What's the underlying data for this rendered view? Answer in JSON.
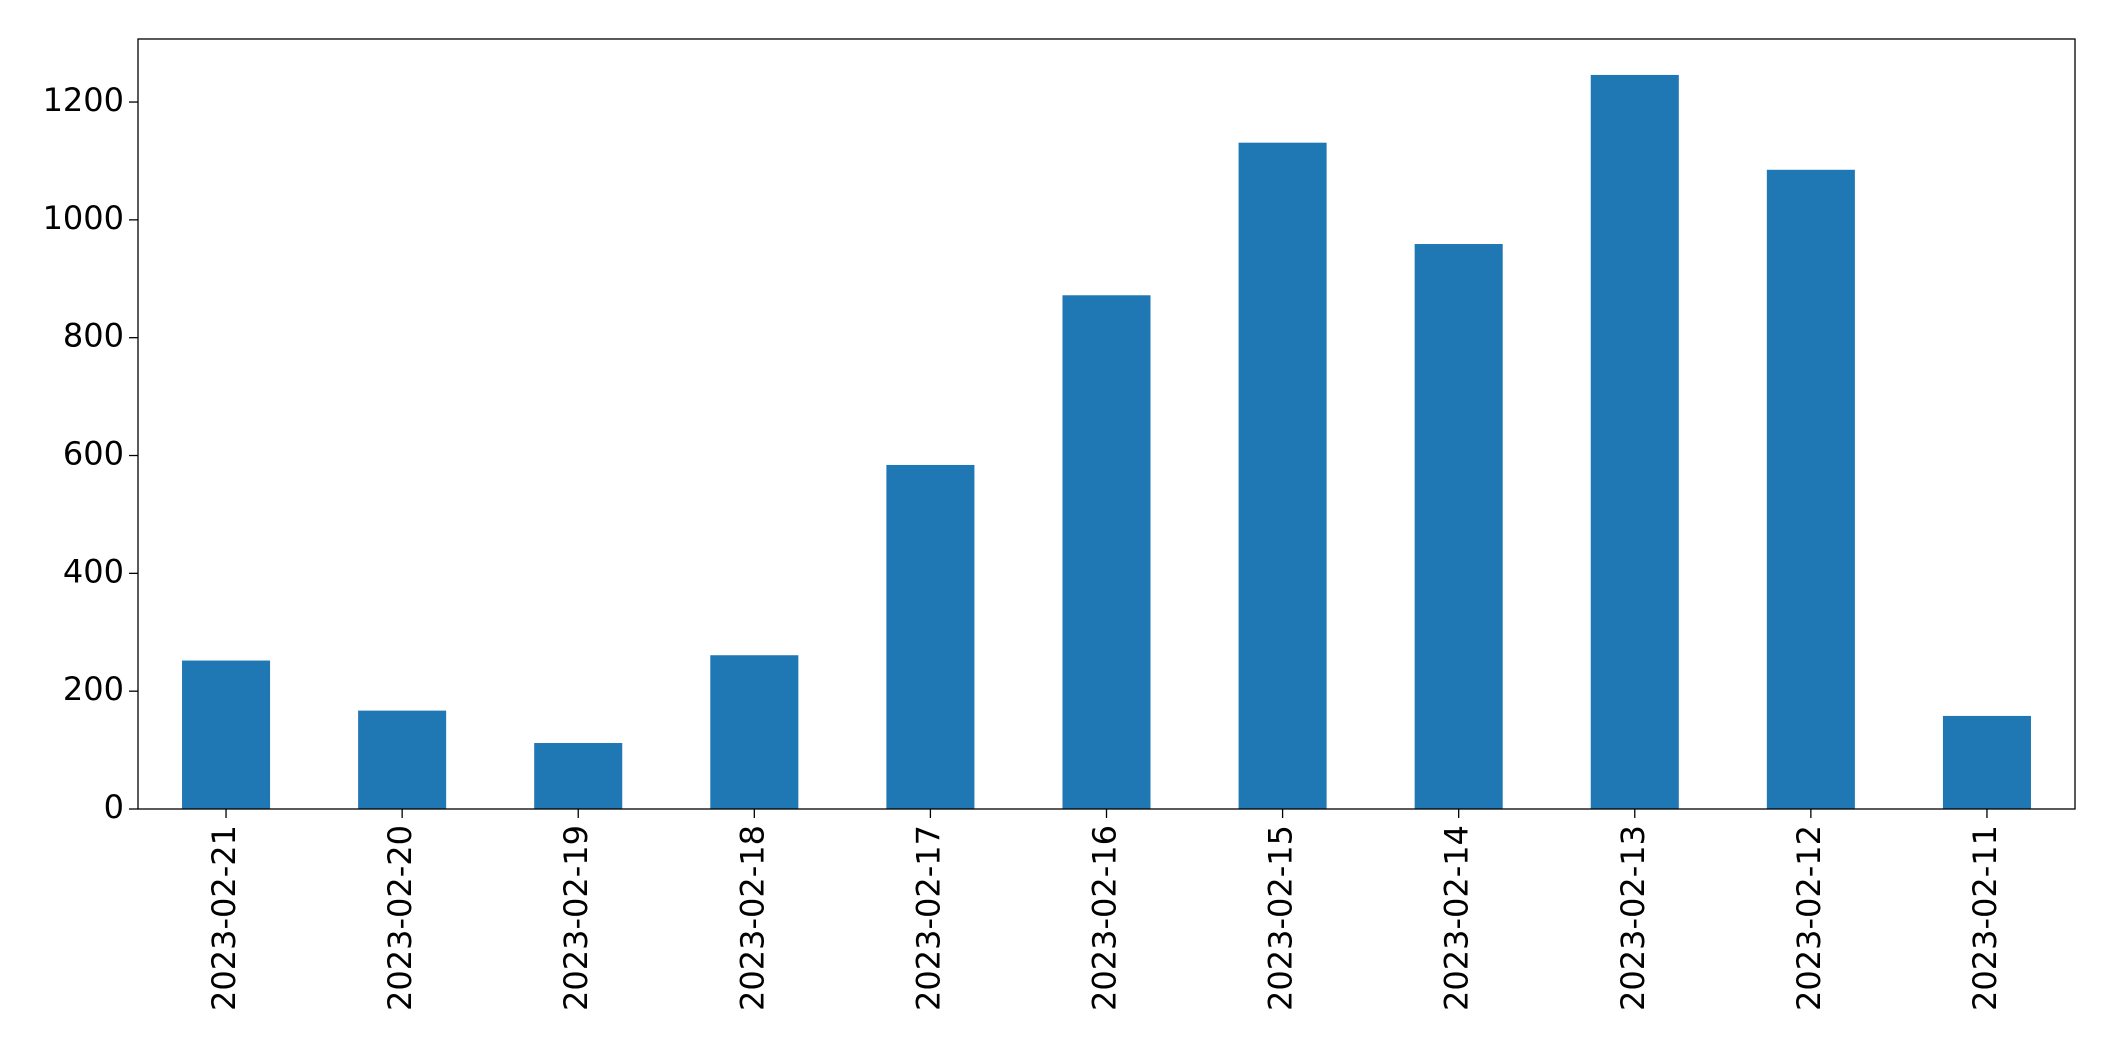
{
  "chart_data": {
    "type": "bar",
    "categories": [
      "2023-02-21",
      "2023-02-20",
      "2023-02-19",
      "2023-02-18",
      "2023-02-17",
      "2023-02-16",
      "2023-02-15",
      "2023-02-14",
      "2023-02-13",
      "2023-02-12",
      "2023-02-11"
    ],
    "values": [
      252,
      167,
      112,
      261,
      584,
      872,
      1131,
      959,
      1246,
      1085,
      158
    ],
    "color": "#1f77b4",
    "ylim": [
      0,
      1307
    ],
    "yticks": [
      0,
      200,
      400,
      600,
      800,
      1000,
      1200
    ],
    "grid": false
  }
}
